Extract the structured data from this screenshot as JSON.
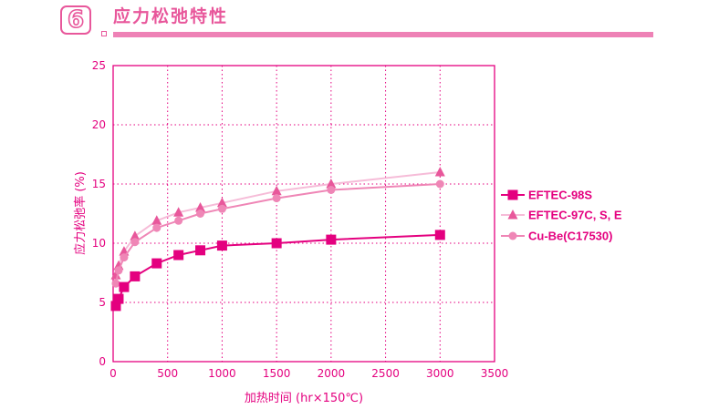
{
  "header": {
    "section_number": "6",
    "title": "应力松弛特性"
  },
  "chart_data": {
    "type": "line",
    "title": "应力松弛特性",
    "xlabel": "加热时间 (hr×150℃)",
    "ylabel": "应力松弛率 (%)",
    "xlim": [
      0,
      3500
    ],
    "ylim": [
      0,
      25
    ],
    "xticks": [
      0,
      500,
      1000,
      1500,
      2000,
      2500,
      3000,
      3500
    ],
    "yticks": [
      0,
      5,
      10,
      15,
      20,
      25
    ],
    "grid": true,
    "legend_position": "right",
    "series": [
      {
        "name": "EFTEC-98S",
        "marker": "square",
        "color": "#e4007f",
        "x": [
          25,
          50,
          100,
          200,
          400,
          600,
          800,
          1000,
          1500,
          2000,
          3000
        ],
        "y": [
          4.7,
          5.3,
          6.3,
          7.2,
          8.3,
          9.0,
          9.4,
          9.8,
          10.0,
          10.3,
          10.7
        ]
      },
      {
        "name": "EFTEC-97C, S, E",
        "marker": "triangle",
        "color": "#e8579b",
        "line_color": "#f6bcd8",
        "x": [
          25,
          50,
          100,
          200,
          400,
          600,
          800,
          1000,
          1500,
          2000,
          3000
        ],
        "y": [
          7.3,
          8.1,
          9.3,
          10.6,
          11.9,
          12.6,
          13.0,
          13.4,
          14.4,
          15.0,
          16.0
        ]
      },
      {
        "name": "Cu-Be(C17530)",
        "marker": "circle",
        "color": "#ef86b6",
        "x": [
          25,
          50,
          100,
          200,
          400,
          600,
          800,
          1000,
          1500,
          2000,
          3000
        ],
        "y": [
          6.6,
          7.7,
          8.8,
          10.1,
          11.3,
          11.9,
          12.5,
          12.9,
          13.8,
          14.5,
          15.0
        ]
      }
    ]
  }
}
